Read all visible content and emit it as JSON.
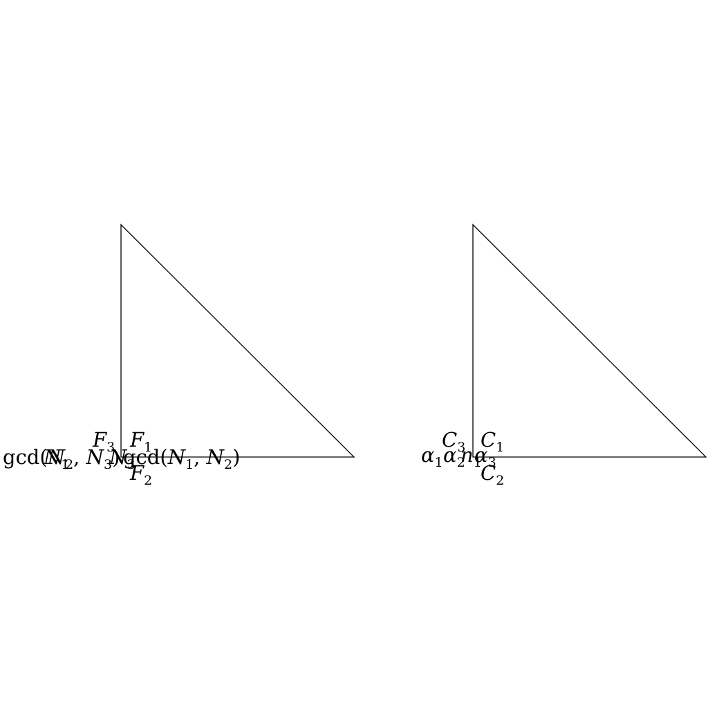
{
  "colors": {
    "background": "#ffffff",
    "stroke": "#000000"
  },
  "left_diagram": {
    "labels": {
      "f1": {
        "base": "F",
        "sub": "1"
      },
      "f2": {
        "base": "F",
        "sub": "2"
      },
      "f3": {
        "base": "F",
        "sub": "3"
      },
      "gcd_n2_n3": {
        "pre": "gcd(",
        "a": "N",
        "a_sub": "2",
        "mid": ", ",
        "b": "N",
        "b_sub": "3",
        "post": ")"
      },
      "gcd_n1_n3_overlap": {
        "a": "N",
        "a_sub": "1"
      },
      "n_overlap": {
        "a": "N",
        "a_sub": "3"
      },
      "gcd_n1_n2": {
        "pre": "gcd(",
        "a": "N",
        "a_sub": "1",
        "mid": ", ",
        "b": "N",
        "b_sub": "2",
        "post": ")"
      }
    }
  },
  "right_diagram": {
    "labels": {
      "c1": {
        "base": "C",
        "sub": "1"
      },
      "c2": {
        "base": "C",
        "sub": "2"
      },
      "c3": {
        "base": "C",
        "sub": "3"
      },
      "alpha1": {
        "base": "α",
        "sub": "1"
      },
      "alpha2": {
        "base": "α",
        "sub": "2"
      },
      "n1": {
        "base": "n",
        "sub": "1"
      },
      "alpha3": {
        "base": "α",
        "sub": "3"
      }
    }
  }
}
